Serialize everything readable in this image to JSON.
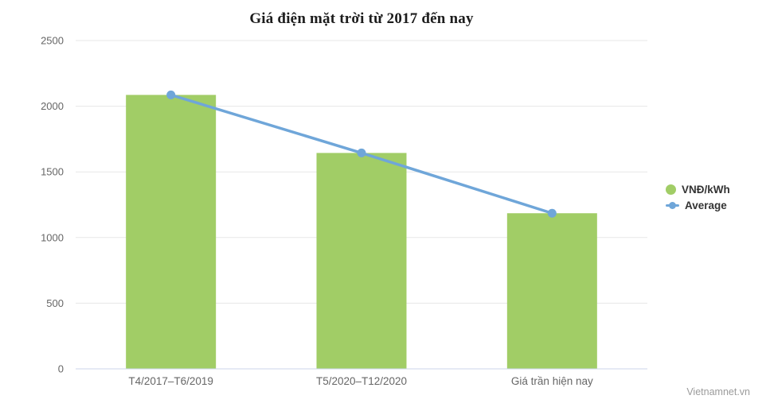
{
  "chart": {
    "title": "Giá điện mặt trời từ 2017 đến nay",
    "watermark": "Vietnamnet.vn"
  },
  "colors": {
    "bar_green": "#a1cd66",
    "line_blue": "#6fa6d9",
    "gridline": "#e7e7e7",
    "axis_line": "#ccd6eb",
    "axis_label": "#666666",
    "legend_text": "#333333",
    "credits_text": "#9b9b9b",
    "title_text": "#1c1c1c",
    "background": "#ffffff"
  },
  "chart_data": {
    "type": "bar",
    "title": "Giá điện mặt trời từ 2017 đến nay",
    "categories": [
      "T4/2017–T6/2019",
      "T5/2020–T12/2020",
      "Giá trần hiện nay"
    ],
    "series": [
      {
        "name": "VNĐ/kWh",
        "type": "bar",
        "color": "#a1cd66",
        "values": [
          2086,
          1644,
          1185
        ]
      },
      {
        "name": "Average",
        "type": "line",
        "color": "#6fa6d9",
        "values": [
          2086,
          1644,
          1185
        ]
      }
    ],
    "xlabel": "",
    "ylabel": "",
    "ylim": [
      0,
      2500
    ],
    "yticks": [
      0,
      500,
      1000,
      1500,
      2000,
      2500
    ],
    "grid": true,
    "legend_position": "right",
    "credits": "Vietnamnet.vn"
  }
}
